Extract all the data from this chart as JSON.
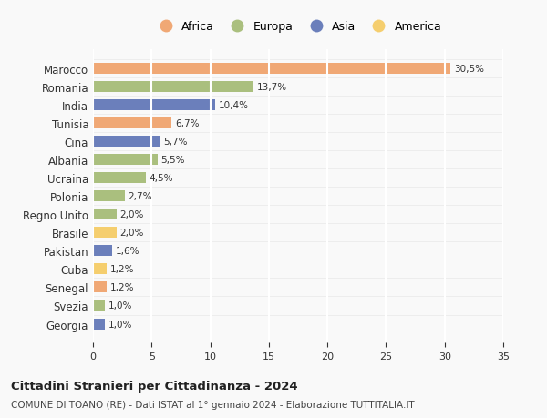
{
  "countries": [
    "Marocco",
    "Romania",
    "India",
    "Tunisia",
    "Cina",
    "Albania",
    "Ucraina",
    "Polonia",
    "Regno Unito",
    "Brasile",
    "Pakistan",
    "Cuba",
    "Senegal",
    "Svezia",
    "Georgia"
  ],
  "values": [
    30.5,
    13.7,
    10.4,
    6.7,
    5.7,
    5.5,
    4.5,
    2.7,
    2.0,
    2.0,
    1.6,
    1.2,
    1.2,
    1.0,
    1.0
  ],
  "labels": [
    "30,5%",
    "13,7%",
    "10,4%",
    "6,7%",
    "5,7%",
    "5,5%",
    "4,5%",
    "2,7%",
    "2,0%",
    "2,0%",
    "1,6%",
    "1,2%",
    "1,2%",
    "1,0%",
    "1,0%"
  ],
  "continents": [
    "Africa",
    "Europa",
    "Asia",
    "Africa",
    "Asia",
    "Europa",
    "Europa",
    "Europa",
    "Europa",
    "America",
    "Asia",
    "America",
    "Africa",
    "Europa",
    "Asia"
  ],
  "colors": {
    "Africa": "#F0A875",
    "Europa": "#AABF7E",
    "Asia": "#6B7FBB",
    "America": "#F5CE6E"
  },
  "legend_order": [
    "Africa",
    "Europa",
    "Asia",
    "America"
  ],
  "title": "Cittadini Stranieri per Cittadinanza - 2024",
  "subtitle": "COMUNE DI TOANO (RE) - Dati ISTAT al 1° gennaio 2024 - Elaborazione TUTTITALIA.IT",
  "xlim": [
    0,
    35
  ],
  "xticks": [
    0,
    5,
    10,
    15,
    20,
    25,
    30,
    35
  ],
  "background_color": "#f9f9f9",
  "grid_color": "#ffffff",
  "bar_height": 0.6
}
